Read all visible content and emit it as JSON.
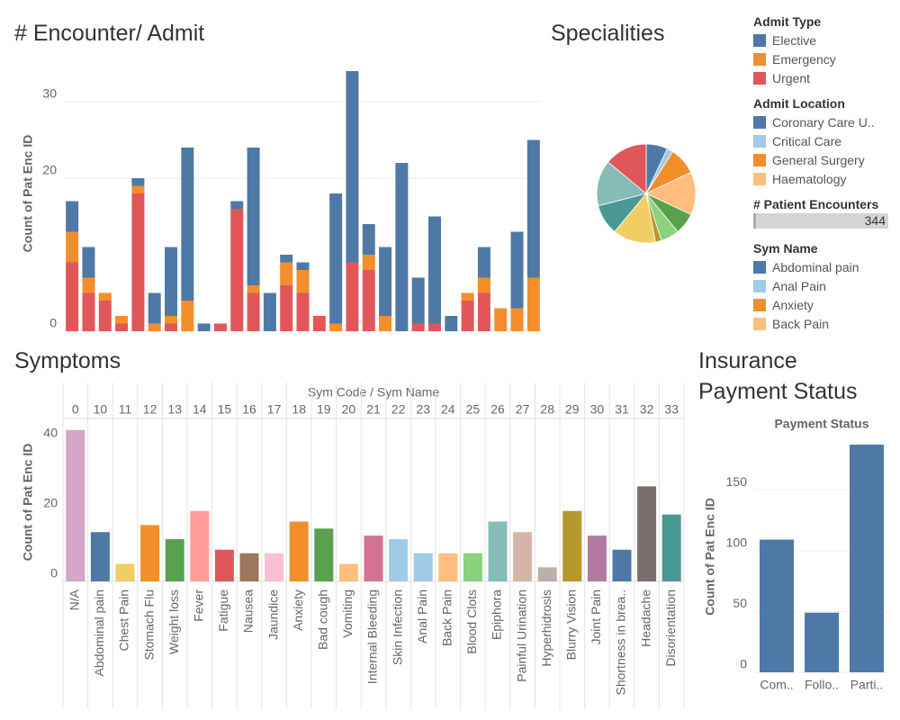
{
  "chart_data": [
    {
      "type": "stacked_bar",
      "title": "# Encounter/ Admit",
      "y_label": "Count of Pat Enc ID",
      "legend_title": "Admit Type",
      "categories": [
        null,
        null,
        null,
        null,
        null,
        null,
        null,
        null,
        null,
        null,
        null,
        null,
        null,
        null,
        null,
        null,
        null,
        null,
        null,
        null,
        null,
        null,
        null,
        null,
        null,
        null,
        null,
        null,
        null
      ],
      "series": [
        {
          "name": "Elective",
          "color": "#4e79a7",
          "values": [
            4,
            4,
            0,
            0,
            1,
            4,
            9,
            20,
            1,
            0,
            1,
            18,
            5,
            1,
            1,
            0,
            17,
            25,
            4,
            9,
            22,
            6,
            14,
            2,
            0,
            4,
            0,
            10,
            18
          ]
        },
        {
          "name": "Emergency",
          "color": "#f28e2b",
          "values": [
            4,
            2,
            1,
            1,
            1,
            1,
            1,
            4,
            0,
            0,
            0,
            1,
            0,
            3,
            3,
            0,
            1,
            0,
            2,
            2,
            0,
            0,
            0,
            0,
            1,
            2,
            3,
            3,
            7
          ]
        },
        {
          "name": "Urgent",
          "color": "#e15759",
          "values": [
            9,
            5,
            4,
            1,
            18,
            0,
            1,
            0,
            0,
            1,
            16,
            5,
            0,
            6,
            5,
            2,
            0,
            9,
            8,
            0,
            0,
            1,
            1,
            0,
            4,
            5,
            0,
            0,
            0
          ]
        }
      ],
      "ylim": [
        0,
        36
      ],
      "yticks": [
        0,
        20,
        30
      ],
      "grid": true
    },
    {
      "type": "pie",
      "title": "Specialities",
      "legend_title": "Admit Location",
      "categories": [
        "Coronary Care U..",
        "Critical Care",
        "General Surgery",
        "Haematology",
        null,
        null,
        null,
        null,
        null,
        null,
        null
      ],
      "values": [
        7,
        2,
        9,
        14,
        7,
        6,
        2,
        14,
        10,
        15,
        14
      ],
      "colors": [
        "#4e79a7",
        "#a0cbe8",
        "#f28e2b",
        "#ffbe7d",
        "#59a14f",
        "#8cd17d",
        "#b6992d",
        "#f1ce63",
        "#499894",
        "#86bcb6",
        "#e15759"
      ]
    },
    {
      "type": "bar",
      "title": "Symptoms",
      "y_label": "Count of Pat Enc ID",
      "x_header": "Sym Code  /  Sym Name",
      "codes": [
        0,
        10,
        11,
        12,
        13,
        14,
        15,
        16,
        17,
        18,
        19,
        20,
        21,
        22,
        23,
        24,
        25,
        26,
        27,
        28,
        29,
        30,
        31,
        32,
        33
      ],
      "categories": [
        "N/A",
        "Abdominal pain",
        "Chest Pain",
        "Stomach Flu",
        "Weight loss",
        "Fever",
        "Fatigue",
        "Nausea",
        "Jaundice",
        "Anxiety",
        "Bad cough",
        "Vomiting",
        "Internal Bleeding",
        "Skin Infection",
        "Anal Pain",
        "Back Pain",
        "Blood Clots",
        "Epiphora",
        "Painful Urination",
        "Hyperhidrosis",
        "Blurry Vision",
        "Joint Pain",
        "Shortness in brea..",
        "Headache",
        "Disorientation"
      ],
      "values": [
        43,
        14,
        5,
        16,
        12,
        20,
        9,
        8,
        8,
        17,
        15,
        5,
        13,
        12,
        8,
        8,
        8,
        17,
        14,
        4,
        20,
        13,
        9,
        27,
        19
      ],
      "colors": [
        "#d4a6c8",
        "#4e79a7",
        "#f1ce63",
        "#f28e2b",
        "#59a14f",
        "#ff9d9a",
        "#e15759",
        "#9d7660",
        "#fabfd2",
        "#f28e2b",
        "#59a14f",
        "#ffbe7d",
        "#d37295",
        "#a0cbe8",
        "#a0cbe8",
        "#ffbe7d",
        "#8cd17d",
        "#86bcb6",
        "#d7b5a6",
        "#bab0ac",
        "#b6992d",
        "#b07aa1",
        "#4e79a7",
        "#79706e",
        "#499894"
      ],
      "ylim": [
        0,
        45
      ],
      "yticks": [
        0,
        20,
        40
      ]
    },
    {
      "type": "bar",
      "title": "Insurance Payment Status",
      "subtitle": "Payment Status",
      "y_label": "Count of Pat Enc ID",
      "categories": [
        "Com..",
        "Follo..",
        "Parti.."
      ],
      "values": [
        109,
        49,
        187
      ],
      "color": "#4e79a7",
      "ylim": [
        0,
        190
      ],
      "yticks": [
        0,
        50,
        100,
        150
      ],
      "grid": true
    }
  ],
  "patient_encounters": {
    "title": "# Patient Encounters",
    "value": 344
  },
  "sym_legend": {
    "title": "Sym Name",
    "items": [
      {
        "name": "Abdominal pain",
        "color": "#4e79a7"
      },
      {
        "name": "Anal Pain",
        "color": "#a0cbe8"
      },
      {
        "name": "Anxiety",
        "color": "#f28e2b"
      },
      {
        "name": "Back Pain",
        "color": "#ffbe7d"
      }
    ]
  }
}
